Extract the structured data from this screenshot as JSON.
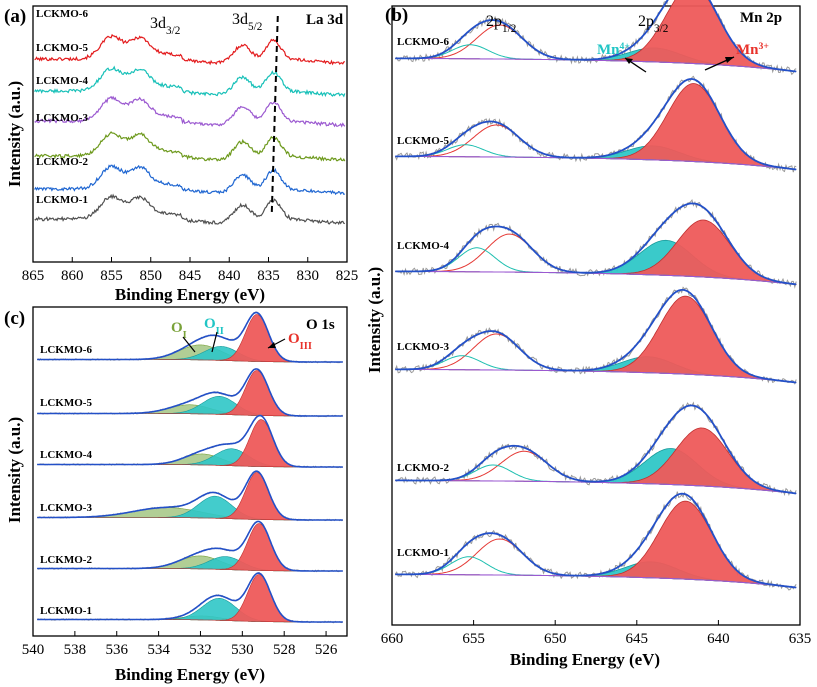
{
  "chart_data": [
    {
      "id": "a",
      "type": "line",
      "panel_label": "(a)",
      "element_label": "La 3d",
      "xlabel": "Binding Energy (eV)",
      "ylabel": "Intensity (a.u.)",
      "xlim": [
        865,
        825
      ],
      "x_ticks": [
        "865",
        "860",
        "855",
        "850",
        "845",
        "840",
        "835",
        "830",
        "825"
      ],
      "peak_labels": [
        {
          "base": "3d",
          "sub": "3/2",
          "x": 850
        },
        {
          "base": "3d",
          "sub": "5/2",
          "x": 837
        }
      ],
      "reference_line_x": 834.2,
      "series": [
        {
          "name": "LCKMO-6",
          "color": "#e31a1c"
        },
        {
          "name": "LCKMO-5",
          "color": "#17c0b8"
        },
        {
          "name": "LCKMO-4",
          "color": "#9b59d0"
        },
        {
          "name": "LCKMO-3",
          "color": "#6e9a1e"
        },
        {
          "name": "LCKMO-2",
          "color": "#1f66d1"
        },
        {
          "name": "LCKMO-1",
          "color": "#505050"
        }
      ]
    },
    {
      "id": "b",
      "type": "line",
      "panel_label": "(b)",
      "element_label": "Mn 2p",
      "xlabel": "Binding Energy (eV)",
      "ylabel": "Intensity (a.u.)",
      "xlim": [
        660,
        635
      ],
      "x_ticks": [
        "660",
        "655",
        "650",
        "645",
        "640",
        "635"
      ],
      "peak_labels": [
        {
          "base": "2p",
          "sub": "1/2"
        },
        {
          "base": "2p",
          "sub": "3/2"
        }
      ],
      "species": [
        {
          "base": "Mn",
          "sup": "4+",
          "color": "#20c5c5"
        },
        {
          "base": "Mn",
          "sup": "3+",
          "color": "#e8312a"
        }
      ],
      "samples": [
        "LCKMO-6",
        "LCKMO-5",
        "LCKMO-4",
        "LCKMO-3",
        "LCKMO-2",
        "LCKMO-1"
      ],
      "components": [
        {
          "name": "Mn3+ 2p3/2",
          "color": "#ee5a5a",
          "centers": [
            641.6,
            641.5,
            640.9,
            642.0,
            641.0,
            642.0
          ]
        },
        {
          "name": "Mn4+ 2p3/2",
          "color": "#2fc7c7",
          "centers": [
            643.9,
            644.0,
            643.2,
            644.3,
            642.9,
            644.1
          ]
        },
        {
          "name": "Mn3+ 2p1/2",
          "color": "#e53935",
          "centers": [
            653.4,
            653.6,
            652.8,
            653.6,
            651.9,
            653.4
          ]
        },
        {
          "name": "Mn4+ 2p1/2",
          "color": "#1fbfb0",
          "centers": [
            655.2,
            655.5,
            654.8,
            655.7,
            653.8,
            655.3
          ]
        }
      ]
    },
    {
      "id": "c",
      "type": "line",
      "panel_label": "(c)",
      "element_label": "O 1s",
      "xlabel": "Binding Energy (eV)",
      "ylabel": "Intensity (a.u.)",
      "xlim": [
        540,
        525
      ],
      "x_ticks": [
        "540",
        "538",
        "536",
        "534",
        "532",
        "530",
        "528",
        "526"
      ],
      "species": [
        {
          "base": "O",
          "sub": "I",
          "color": "#7aa23a"
        },
        {
          "base": "O",
          "sub": "II",
          "color": "#20c5c5"
        },
        {
          "base": "O",
          "sub": "III",
          "color": "#e8312a"
        }
      ],
      "samples": [
        "LCKMO-6",
        "LCKMO-5",
        "LCKMO-4",
        "LCKMO-3",
        "LCKMO-2",
        "LCKMO-1"
      ],
      "components": [
        {
          "name": "OIII",
          "color": "#ee5a5a",
          "centers": [
            529.3,
            529.3,
            529.1,
            529.3,
            529.2,
            529.2
          ]
        },
        {
          "name": "OII",
          "color": "#2fc7c7",
          "centers": [
            531.0,
            531.1,
            530.5,
            531.3,
            530.8,
            531.1
          ]
        },
        {
          "name": "OI",
          "color": "#a9c98a",
          "centers": [
            532.0,
            532.5,
            531.9,
            533.6,
            532.0,
            531.9
          ]
        }
      ]
    }
  ]
}
